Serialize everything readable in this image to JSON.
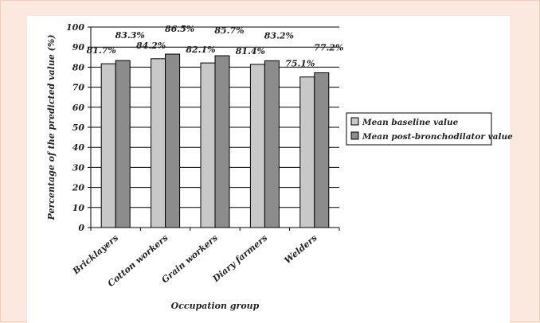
{
  "chart_data": {
    "type": "bar",
    "categories": [
      "Bricklayers",
      "Cotton workers",
      "Grain workers",
      "Diary farmers",
      "Welders"
    ],
    "series": [
      {
        "name": "Mean baseline value",
        "values": [
          81.7,
          84.2,
          82.1,
          81.4,
          75.1
        ],
        "labels": [
          "81.7%",
          "84.2%",
          "82.1%",
          "81.4%",
          "75.1%"
        ],
        "color": "#c8c8c8"
      },
      {
        "name": "Mean post-bronchodilator value",
        "values": [
          83.3,
          86.5,
          85.7,
          83.2,
          77.2
        ],
        "labels": [
          "83.3%",
          "86.5%",
          "85.7%",
          "83.2%",
          "77.2%"
        ],
        "color": "#8c8c8c"
      }
    ],
    "title": "",
    "xlabel": "Occupation group",
    "ylabel": "Percentage of the predicted value (%)",
    "ylim": [
      0,
      100
    ],
    "yticks": [
      "0",
      "10",
      "20",
      "30",
      "40",
      "50",
      "60",
      "70",
      "80",
      "90",
      "100"
    ],
    "grid": true,
    "legend_position": "right"
  }
}
